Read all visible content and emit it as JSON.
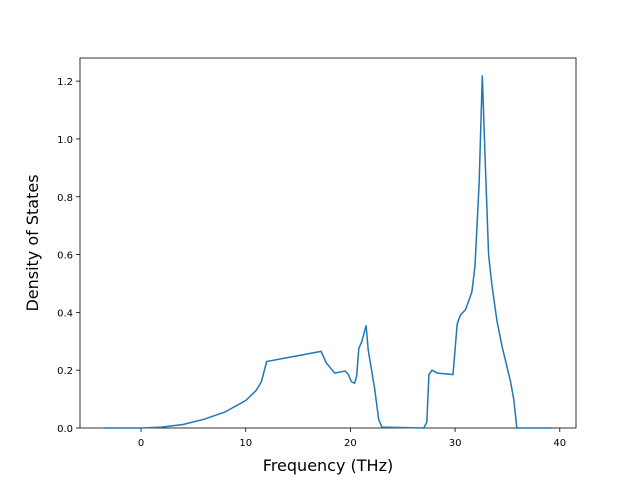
{
  "chart_data": {
    "type": "line",
    "xlabel": "Frequency (THz)",
    "ylabel": "Density of States",
    "series": [
      {
        "color": "#1f77b4",
        "x": [
          -3.5,
          0,
          2,
          4,
          6,
          8,
          10,
          11,
          11.5,
          12,
          17.2,
          17.7,
          18.5,
          19.5,
          19.8,
          20.1,
          20.4,
          20.6,
          20.8,
          21.1,
          21.5,
          21.7,
          22.3,
          22.7,
          23,
          27,
          27.3,
          27.5,
          27.8,
          28.3,
          29.8,
          30.2,
          30.5,
          31,
          31.6,
          31.9,
          32.3,
          32.6,
          32.9,
          33.2,
          33.5,
          34,
          34.5,
          35.3,
          35.6,
          35.9,
          39.2
        ],
        "values": [
          0,
          0,
          0.003,
          0.012,
          0.03,
          0.055,
          0.095,
          0.13,
          0.16,
          0.23,
          0.265,
          0.225,
          0.19,
          0.197,
          0.185,
          0.16,
          0.155,
          0.18,
          0.275,
          0.3,
          0.355,
          0.27,
          0.14,
          0.03,
          0.003,
          0,
          0.02,
          0.185,
          0.2,
          0.19,
          0.185,
          0.36,
          0.39,
          0.41,
          0.47,
          0.56,
          0.85,
          1.22,
          0.9,
          0.6,
          0.5,
          0.37,
          0.28,
          0.16,
          0.1,
          0,
          0
        ]
      }
    ],
    "xlim": [
      -5.83,
      41.55
    ],
    "xticks": [
      0,
      10,
      20,
      30,
      40
    ],
    "ylim": [
      0,
      1.28
    ],
    "yticks": [
      {
        "value": 0,
        "label": "0.0"
      },
      0.2,
      0.4,
      0.6,
      0.8,
      {
        "value": 1,
        "label": "1.0"
      },
      1.2
    ]
  }
}
